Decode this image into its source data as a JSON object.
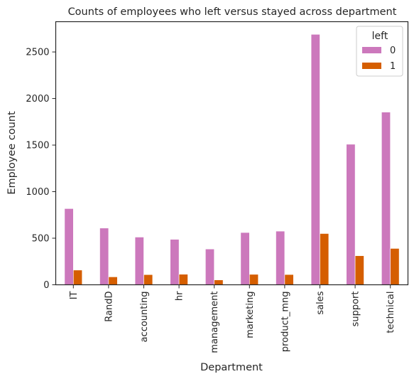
{
  "chart_data": {
    "type": "bar",
    "title": "Counts of employees who left versus stayed across department",
    "xlabel": "Department",
    "ylabel": "Employee count",
    "categories": [
      "IT",
      "RandD",
      "accounting",
      "hr",
      "management",
      "marketing",
      "product_mng",
      "sales",
      "support",
      "technical"
    ],
    "series": [
      {
        "name": "0",
        "color": "#cc78bc",
        "values": [
          818,
          609,
          512,
          488,
          384,
          561,
          576,
          2689,
          1509,
          1854
        ]
      },
      {
        "name": "1",
        "color": "#d55e00",
        "values": [
          158,
          85,
          109,
          113,
          52,
          112,
          110,
          550,
          312,
          390
        ]
      }
    ],
    "yticks": [
      0,
      500,
      1000,
      1500,
      2000,
      2500
    ],
    "ylim": [
      0,
      2825
    ],
    "grid": false,
    "legend": {
      "title": "left",
      "placement": "top-right"
    }
  }
}
